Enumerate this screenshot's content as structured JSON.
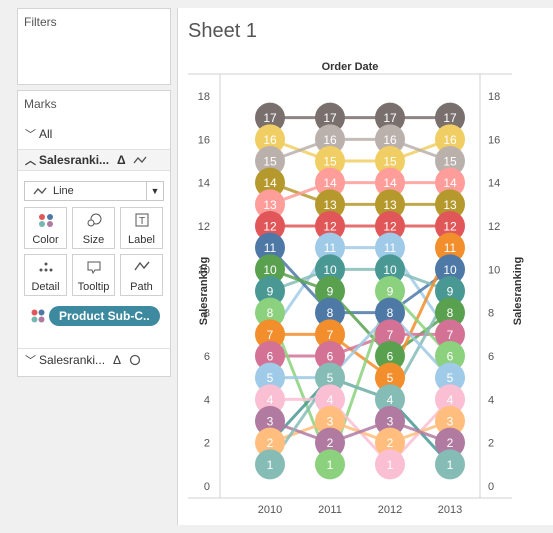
{
  "panels": {
    "filters_title": "Filters",
    "marks_title": "Marks",
    "all_label": "All",
    "sales1_label": "Salesranki...",
    "sales2_label": "Salesranki...",
    "delta": "Δ",
    "mark_type": "Line",
    "tiles": [
      {
        "label": "Color"
      },
      {
        "label": "Size"
      },
      {
        "label": "Label"
      },
      {
        "label": "Detail"
      },
      {
        "label": "Tooltip"
      },
      {
        "label": "Path"
      }
    ],
    "pill_label": "Product Sub-C.."
  },
  "sheet": {
    "title": "Sheet 1"
  },
  "chart_data": {
    "type": "line",
    "title": "Order Date",
    "x": [
      "2010",
      "2011",
      "2012",
      "2013"
    ],
    "ylabel_left": "Salesranking",
    "ylabel_right": "Salesranking",
    "ylim": [
      0,
      18
    ],
    "yticks": [
      "0",
      "2",
      "4",
      "6",
      "8",
      "10",
      "12",
      "14",
      "16",
      "18"
    ],
    "grid": false,
    "series": [
      {
        "color": "#e15759",
        "ranks": [
          12,
          12,
          12,
          12
        ]
      },
      {
        "color": "#79706e",
        "ranks": [
          17,
          17,
          17,
          17
        ]
      },
      {
        "color": "#b6992d",
        "ranks": [
          14,
          13,
          13,
          13
        ]
      },
      {
        "color": "#ff9d9a",
        "ranks": [
          13,
          14,
          14,
          14
        ]
      },
      {
        "color": "#f1ce63",
        "ranks": [
          16,
          15,
          15,
          16
        ]
      },
      {
        "color": "#bab0ac",
        "ranks": [
          15,
          16,
          16,
          15
        ]
      },
      {
        "color": "#a0cbe8",
        "ranks": [
          7,
          11,
          11,
          7
        ]
      },
      {
        "color": "#4e79a7",
        "ranks": [
          11,
          8,
          8,
          10
        ]
      },
      {
        "color": "#86bcb6",
        "ranks": [
          9,
          10,
          10,
          9
        ]
      },
      {
        "color": "#59a14f",
        "ranks": [
          10,
          9,
          6,
          8
        ]
      },
      {
        "color": "#f28e2b",
        "ranks": [
          7,
          7,
          5,
          11
        ]
      },
      {
        "color": "#d37295",
        "ranks": [
          6,
          6,
          7,
          7
        ]
      },
      {
        "color": "#8cd17d",
        "ranks": [
          8,
          1,
          9,
          6
        ]
      },
      {
        "color": "#499894",
        "ranks": [
          2,
          5,
          4,
          1
        ]
      },
      {
        "color": "#fabfd2",
        "ranks": [
          4,
          4,
          1,
          4
        ]
      },
      {
        "color": "#ffbe7d",
        "ranks": [
          2,
          3,
          2,
          3
        ]
      },
      {
        "color": "#b07aa1",
        "ranks": [
          3,
          2,
          3,
          2
        ]
      },
      {
        "color": "#86bcb6",
        "ranks": [
          1,
          5,
          4,
          9
        ]
      },
      {
        "color": "#9dc9e2",
        "ranks": [
          5,
          5,
          8,
          5
        ]
      }
    ],
    "marks": [
      [
        {
          "r": 17,
          "c": "#79706e"
        },
        {
          "r": 16,
          "c": "#f1ce63"
        },
        {
          "r": 15,
          "c": "#bab0ac"
        },
        {
          "r": 14,
          "c": "#b6992d"
        },
        {
          "r": 13,
          "c": "#ff9d9a"
        },
        {
          "r": 12,
          "c": "#e15759"
        },
        {
          "r": 11,
          "c": "#4e79a7"
        },
        {
          "r": 10,
          "c": "#59a14f"
        },
        {
          "r": 9,
          "c": "#499894"
        },
        {
          "r": 8,
          "c": "#8cd17d"
        },
        {
          "r": 7,
          "c": "#f28e2b"
        },
        {
          "r": 6,
          "c": "#d37295"
        },
        {
          "r": 5,
          "c": "#a0cbe8"
        },
        {
          "r": 4,
          "c": "#fabfd2"
        },
        {
          "r": 3,
          "c": "#b07aa1"
        },
        {
          "r": 2,
          "c": "#ffbe7d"
        },
        {
          "r": 1,
          "c": "#86bcb6"
        }
      ],
      [
        {
          "r": 17,
          "c": "#79706e"
        },
        {
          "r": 16,
          "c": "#bab0ac"
        },
        {
          "r": 15,
          "c": "#f1ce63"
        },
        {
          "r": 14,
          "c": "#ff9d9a"
        },
        {
          "r": 13,
          "c": "#b6992d"
        },
        {
          "r": 12,
          "c": "#e15759"
        },
        {
          "r": 11,
          "c": "#a0cbe8"
        },
        {
          "r": 10,
          "c": "#499894"
        },
        {
          "r": 9,
          "c": "#59a14f"
        },
        {
          "r": 8,
          "c": "#4e79a7"
        },
        {
          "r": 7,
          "c": "#f28e2b"
        },
        {
          "r": 6,
          "c": "#d37295"
        },
        {
          "r": 5,
          "c": "#86bcb6"
        },
        {
          "r": 4,
          "c": "#fabfd2"
        },
        {
          "r": 3,
          "c": "#ffbe7d"
        },
        {
          "r": 2,
          "c": "#b07aa1"
        },
        {
          "r": 1,
          "c": "#8cd17d"
        }
      ],
      [
        {
          "r": 17,
          "c": "#79706e"
        },
        {
          "r": 16,
          "c": "#bab0ac"
        },
        {
          "r": 15,
          "c": "#f1ce63"
        },
        {
          "r": 14,
          "c": "#ff9d9a"
        },
        {
          "r": 13,
          "c": "#b6992d"
        },
        {
          "r": 12,
          "c": "#e15759"
        },
        {
          "r": 11,
          "c": "#a0cbe8"
        },
        {
          "r": 10,
          "c": "#499894"
        },
        {
          "r": 9,
          "c": "#8cd17d"
        },
        {
          "r": 8,
          "c": "#4e79a7"
        },
        {
          "r": 7,
          "c": "#d37295"
        },
        {
          "r": 6,
          "c": "#59a14f"
        },
        {
          "r": 5,
          "c": "#f28e2b"
        },
        {
          "r": 4,
          "c": "#86bcb6"
        },
        {
          "r": 3,
          "c": "#b07aa1"
        },
        {
          "r": 2,
          "c": "#ffbe7d"
        },
        {
          "r": 1,
          "c": "#fabfd2"
        }
      ],
      [
        {
          "r": 17,
          "c": "#79706e"
        },
        {
          "r": 16,
          "c": "#f1ce63"
        },
        {
          "r": 15,
          "c": "#bab0ac"
        },
        {
          "r": 14,
          "c": "#ff9d9a"
        },
        {
          "r": 13,
          "c": "#b6992d"
        },
        {
          "r": 12,
          "c": "#e15759"
        },
        {
          "r": 11,
          "c": "#f28e2b"
        },
        {
          "r": 10,
          "c": "#4e79a7"
        },
        {
          "r": 9,
          "c": "#499894"
        },
        {
          "r": 8,
          "c": "#59a14f"
        },
        {
          "r": 7,
          "c": "#d37295"
        },
        {
          "r": 6,
          "c": "#8cd17d"
        },
        {
          "r": 5,
          "c": "#a0cbe8"
        },
        {
          "r": 4,
          "c": "#fabfd2"
        },
        {
          "r": 3,
          "c": "#ffbe7d"
        },
        {
          "r": 2,
          "c": "#b07aa1"
        },
        {
          "r": 1,
          "c": "#86bcb6"
        }
      ]
    ]
  }
}
